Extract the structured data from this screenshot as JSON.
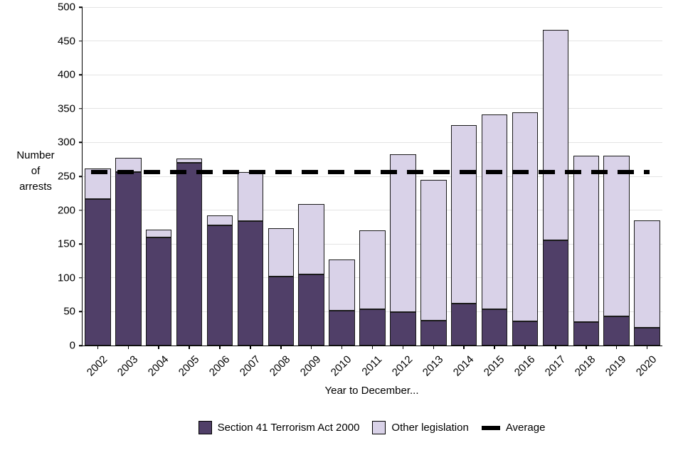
{
  "chart_data": {
    "type": "bar",
    "stacked": true,
    "title": "",
    "xlabel": "Year to December...",
    "ylabel": "Number of arrests",
    "ylabel_lines": [
      "Number",
      "of",
      "arrests"
    ],
    "ylim": [
      0,
      500
    ],
    "yticks": [
      0,
      50,
      100,
      150,
      200,
      250,
      300,
      350,
      400,
      450,
      500
    ],
    "grid": true,
    "legend_position": "bottom",
    "categories": [
      "2002",
      "2003",
      "2004",
      "2005",
      "2006",
      "2007",
      "2008",
      "2009",
      "2010",
      "2011",
      "2012",
      "2013",
      "2014",
      "2015",
      "2016",
      "2017",
      "2018",
      "2019",
      "2020"
    ],
    "series": [
      {
        "name": "Section 41 Terrorism Act 2000",
        "color": "#503f68",
        "values": [
          216,
          256,
          160,
          270,
          178,
          184,
          102,
          105,
          52,
          54,
          49,
          37,
          62,
          54,
          36,
          155,
          35,
          43,
          26
        ]
      },
      {
        "name": "Other legislation",
        "color": "#d9d2e8",
        "values": [
          46,
          21,
          11,
          6,
          14,
          72,
          71,
          104,
          75,
          116,
          234,
          208,
          264,
          287,
          309,
          311,
          246,
          238,
          159
        ]
      }
    ],
    "totals": [
      262,
      277,
      171,
      276,
      192,
      256,
      173,
      209,
      127,
      170,
      283,
      245,
      326,
      341,
      345,
      466,
      281,
      281,
      185
    ],
    "average_line": {
      "label": "Average",
      "value": 256,
      "color": "#000000"
    },
    "bar_border_color": "#1a1a1a"
  }
}
